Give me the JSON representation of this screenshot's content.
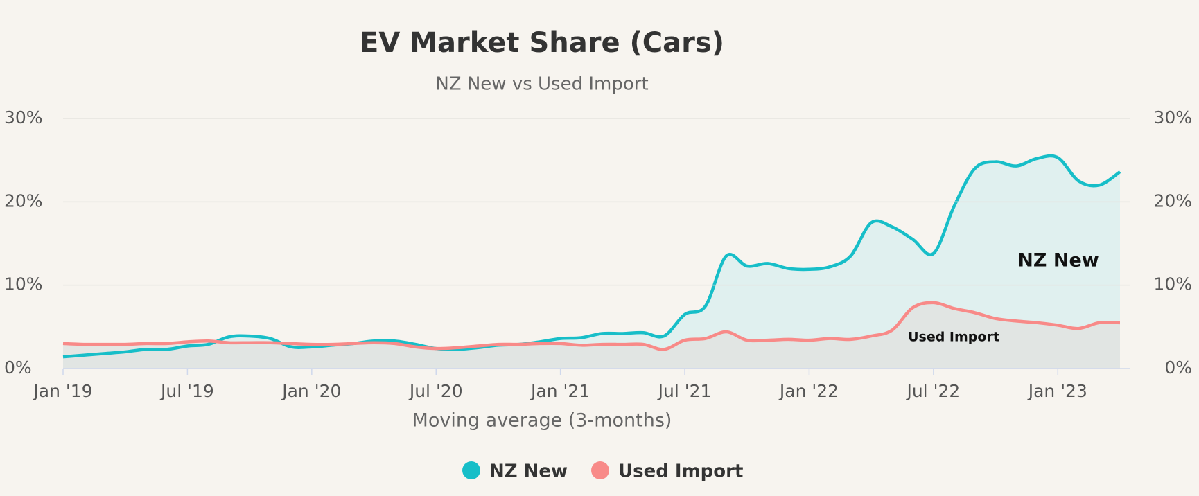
{
  "chart_data": {
    "type": "line",
    "title": "EV Market Share (Cars)",
    "subtitle": "NZ New vs Used Import",
    "x_label": "Moving average (3-months)",
    "x": [
      "2019-01",
      "2019-02",
      "2019-03",
      "2019-04",
      "2019-05",
      "2019-06",
      "2019-07",
      "2019-08",
      "2019-09",
      "2019-10",
      "2019-11",
      "2019-12",
      "2020-01",
      "2020-02",
      "2020-03",
      "2020-04",
      "2020-05",
      "2020-06",
      "2020-07",
      "2020-08",
      "2020-09",
      "2020-10",
      "2020-11",
      "2020-12",
      "2021-01",
      "2021-02",
      "2021-03",
      "2021-04",
      "2021-05",
      "2021-06",
      "2021-07",
      "2021-08",
      "2021-09",
      "2021-10",
      "2021-11",
      "2021-12",
      "2022-01",
      "2022-02",
      "2022-03",
      "2022-04",
      "2022-05",
      "2022-06",
      "2022-07",
      "2022-08",
      "2022-09",
      "2022-10",
      "2022-11",
      "2022-12",
      "2023-01",
      "2023-02",
      "2023-03",
      "2023-04"
    ],
    "xlim": [
      "2019-01",
      "2023-04"
    ],
    "xticks": [
      {
        "value": "2019-01",
        "label": "Jan '19"
      },
      {
        "value": "2019-07",
        "label": "Jul '19"
      },
      {
        "value": "2020-01",
        "label": "Jan '20"
      },
      {
        "value": "2020-07",
        "label": "Jul '20"
      },
      {
        "value": "2021-01",
        "label": "Jan '21"
      },
      {
        "value": "2021-07",
        "label": "Jul '21"
      },
      {
        "value": "2022-01",
        "label": "Jan '22"
      },
      {
        "value": "2022-07",
        "label": "Jul '22"
      },
      {
        "value": "2023-01",
        "label": "Jan '23"
      }
    ],
    "ylim": [
      0,
      30
    ],
    "yticks": [
      {
        "value": 0,
        "label": "0%"
      },
      {
        "value": 10,
        "label": "10%"
      },
      {
        "value": 20,
        "label": "20%"
      },
      {
        "value": 30,
        "label": "30%"
      }
    ],
    "y2lim": [
      0,
      30
    ],
    "y2ticks": [
      {
        "value": 0,
        "label": "0%"
      },
      {
        "value": 10,
        "label": "10%"
      },
      {
        "value": 20,
        "label": "20%"
      },
      {
        "value": 30,
        "label": "30%"
      }
    ],
    "grid": true,
    "legend": "bottom",
    "series": [
      {
        "name": "NZ New",
        "color": "#17bec8",
        "area_color": "#dcefee",
        "values": [
          1.4,
          1.6,
          1.8,
          2.0,
          2.3,
          2.3,
          2.7,
          2.9,
          3.8,
          3.9,
          3.6,
          2.6,
          2.6,
          2.8,
          3.0,
          3.3,
          3.3,
          2.9,
          2.4,
          2.3,
          2.5,
          2.8,
          2.9,
          3.2,
          3.6,
          3.7,
          4.2,
          4.2,
          4.3,
          3.9,
          6.5,
          7.5,
          13.5,
          12.3,
          12.6,
          12.0,
          11.9,
          12.2,
          13.5,
          17.5,
          17.0,
          15.5,
          13.8,
          19.5,
          24.0,
          24.8,
          24.3,
          25.2,
          25.3,
          22.5,
          22.0,
          23.6
        ]
      },
      {
        "name": "Used Import",
        "color": "#f88a88",
        "area_color": "#e0e3e0",
        "values": [
          3.0,
          2.9,
          2.9,
          2.9,
          3.0,
          3.0,
          3.2,
          3.3,
          3.1,
          3.1,
          3.1,
          3.0,
          2.9,
          2.9,
          3.0,
          3.1,
          3.0,
          2.6,
          2.4,
          2.5,
          2.7,
          2.9,
          2.9,
          3.0,
          3.0,
          2.8,
          2.9,
          2.9,
          2.9,
          2.3,
          3.4,
          3.6,
          4.4,
          3.4,
          3.4,
          3.5,
          3.4,
          3.6,
          3.5,
          3.9,
          4.6,
          7.3,
          7.9,
          7.2,
          6.7,
          6.0,
          5.7,
          5.5,
          5.2,
          4.8,
          5.5,
          5.5
        ]
      }
    ],
    "annotations": [
      "NZ New",
      "Used Import"
    ]
  }
}
